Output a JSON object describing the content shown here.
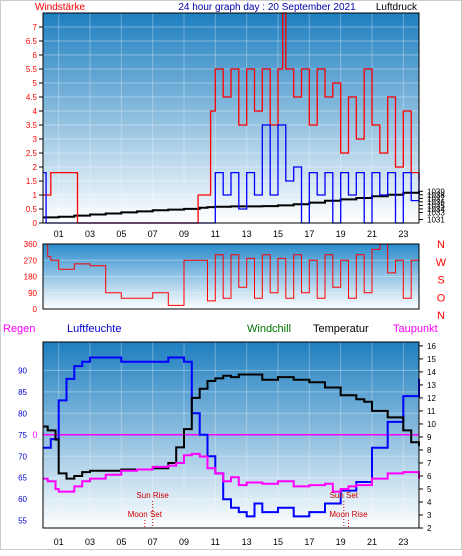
{
  "chart_data": [
    {
      "type": "line",
      "title": "24 hour graph day : 20 September 2021",
      "left_axis_label": "Windstärke",
      "right_axis_label": "Luftdruck",
      "x_ticks": [
        "01",
        "03",
        "05",
        "07",
        "09",
        "11",
        "13",
        "15",
        "17",
        "19",
        "21",
        "23"
      ],
      "x_range": [
        0,
        24
      ],
      "y_left_range": [
        0,
        7.5
      ],
      "y_left_ticks": [
        "0",
        "0.5",
        "1",
        "1.5",
        "2",
        "2.5",
        "3",
        "3.5",
        "4",
        "4.5",
        "5",
        "5.5",
        "6",
        "6.5",
        "7"
      ],
      "y_right_range": [
        1030,
        1089.6
      ],
      "y_right_ticks": [
        "1031",
        "1033",
        "1034",
        "1035",
        "1036",
        "1037",
        "1038",
        "1039"
      ],
      "grid": true,
      "series": [
        {
          "name": "Luftdruck",
          "axis": "right",
          "color": "#000000",
          "x": [
            0,
            1,
            2,
            3,
            4,
            5,
            6,
            7,
            8,
            9,
            10,
            10.5,
            11,
            12,
            13,
            14,
            15,
            16,
            17,
            18,
            19,
            20,
            21,
            22,
            23,
            24
          ],
          "y": [
            1031.6,
            1031.8,
            1032.1,
            1032.4,
            1032.7,
            1033.0,
            1033.3,
            1033.6,
            1033.8,
            1034.0,
            1034.3,
            1034.5,
            1034.6,
            1034.7,
            1034.7,
            1034.8,
            1035.0,
            1035.3,
            1035.8,
            1036.3,
            1036.7,
            1037.1,
            1037.6,
            1038.0,
            1038.6,
            1039.1
          ]
        },
        {
          "name": "Wind gust",
          "axis": "left",
          "color": "#ff0000",
          "x": [
            0,
            0.4,
            0.5,
            2.1,
            2.2,
            3.9,
            4.0,
            9.8,
            9.9,
            10.6,
            10.7,
            11,
            11.5,
            12,
            12.5,
            13,
            13.5,
            14,
            14.5,
            15,
            15.3,
            15.5,
            16,
            16.5,
            17,
            17.5,
            18,
            18.5,
            19,
            19.5,
            20,
            20.5,
            21,
            21.5,
            22,
            22.5,
            23,
            23.5,
            24
          ],
          "y": [
            1.0,
            1.0,
            1.8,
            1.8,
            0.0,
            0.0,
            0.0,
            0.0,
            1.0,
            1.0,
            4.0,
            5.5,
            4.5,
            5.5,
            3.5,
            5.5,
            4.0,
            5.5,
            3.5,
            5.5,
            7.5,
            5.5,
            4.5,
            5.5,
            3.5,
            5.5,
            4.5,
            5.0,
            2.5,
            4.5,
            3.0,
            5.5,
            3.5,
            2.5,
            4.5,
            2.0,
            4.0,
            1.8,
            1.5
          ]
        },
        {
          "name": "Windstärke",
          "axis": "left",
          "color": "#0000ff",
          "x": [
            0,
            0.2,
            10.7,
            11,
            11.5,
            12,
            12.5,
            13,
            13.5,
            14,
            14.5,
            15,
            15.5,
            16,
            16.5,
            17,
            17.5,
            18,
            18.5,
            19,
            19.5,
            20,
            20.5,
            21,
            21.5,
            22,
            22.5,
            23,
            23.5,
            24
          ],
          "y": [
            1.8,
            0.0,
            0.0,
            1.8,
            1.0,
            1.8,
            0.5,
            1.8,
            1.0,
            3.5,
            1.0,
            3.5,
            1.5,
            2.0,
            0.0,
            1.8,
            1.0,
            1.8,
            0.0,
            1.8,
            1.0,
            1.8,
            0.0,
            1.8,
            1.0,
            1.8,
            0.0,
            1.8,
            0.8,
            1.8
          ]
        }
      ]
    },
    {
      "type": "line",
      "right_axis_labels": [
        "N",
        "W",
        "S",
        "O",
        "N"
      ],
      "y_range": [
        0,
        360
      ],
      "y_ticks": [
        "0",
        "90",
        "180",
        "270",
        "360"
      ],
      "x_ticks": [
        "01",
        "03",
        "05",
        "07",
        "09",
        "11",
        "13",
        "15",
        "17",
        "19",
        "21",
        "23"
      ],
      "x_range": [
        0,
        24
      ],
      "grid": true,
      "series": [
        {
          "name": "Windrichtung",
          "color": "#ff0000",
          "x": [
            0,
            0.3,
            0.5,
            1.0,
            2.0,
            3.0,
            4.0,
            5.0,
            6.0,
            7.0,
            8.0,
            9.0,
            10.0,
            10.5,
            11,
            11.5,
            12,
            12.5,
            13,
            13.5,
            14,
            14.5,
            15,
            15.5,
            16,
            16.5,
            17,
            17.5,
            18,
            18.5,
            19,
            19.5,
            20,
            20.5,
            21,
            21.5,
            22,
            22.5,
            23,
            23.5,
            24
          ],
          "y": [
            360,
            290,
            270,
            220,
            250,
            240,
            90,
            60,
            60,
            90,
            20,
            270,
            270,
            45,
            300,
            60,
            300,
            120,
            280,
            60,
            300,
            90,
            280,
            60,
            300,
            90,
            270,
            60,
            300,
            120,
            270,
            60,
            300,
            90,
            330,
            360,
            200,
            270,
            60,
            270,
            270
          ]
        }
      ]
    },
    {
      "type": "line",
      "top_labels": {
        "regen": "Regen",
        "luftfeuchte": "Luftfeuchte",
        "windchill": "Windchill",
        "temperatur": "Temperatur",
        "taupunkt": "Taupunkt"
      },
      "x_ticks": [
        "01",
        "03",
        "05",
        "07",
        "09",
        "11",
        "13",
        "15",
        "17",
        "19",
        "21",
        "23"
      ],
      "x_range": [
        0,
        24
      ],
      "y_left_range": [
        53.3,
        96.6
      ],
      "y_left_ticks": [
        "55",
        "60",
        "65",
        "70",
        "75",
        "80",
        "85",
        "90"
      ],
      "y_right_range": [
        2.0,
        16.3
      ],
      "y_right_ticks": [
        "2",
        "3",
        "4",
        "5",
        "6",
        "7",
        "8",
        "9",
        "10",
        "11",
        "12",
        "13",
        "14",
        "15",
        "16"
      ],
      "zero_marker": "0",
      "annotations": [
        {
          "text": "Sun Rise",
          "x": 7.0
        },
        {
          "text": "Moon Set",
          "x": 6.5
        },
        {
          "text": "Sun Set",
          "x": 19.2
        },
        {
          "text": "Moon Rise",
          "x": 19.5
        }
      ],
      "series": [
        {
          "name": "Luftfeuchte",
          "axis": "left",
          "color": "#0000ff",
          "x": [
            0,
            0.5,
            1.0,
            1.5,
            2.0,
            2.5,
            3,
            4,
            5,
            6,
            7,
            8,
            9,
            9.5,
            10,
            10.5,
            11,
            11.5,
            12,
            12.5,
            13,
            13.5,
            14,
            15,
            16,
            17,
            18,
            19,
            20,
            21,
            22,
            23,
            24
          ],
          "y": [
            72,
            74,
            83,
            88,
            91,
            92,
            93,
            93,
            92,
            92,
            92,
            93,
            92,
            80,
            75,
            70,
            66,
            60,
            58,
            57,
            56,
            59,
            57,
            58,
            56,
            57,
            59,
            62,
            64,
            72,
            78,
            84,
            88
          ]
        },
        {
          "name": "Temperatur",
          "axis": "right",
          "color": "#000000",
          "x": [
            0,
            0.3,
            0.8,
            1.0,
            1.5,
            2.0,
            2.5,
            3,
            4,
            5,
            6,
            7,
            8,
            8.5,
            9,
            9.5,
            10,
            10.5,
            11,
            11.5,
            12,
            12.5,
            13,
            14,
            15,
            16,
            17,
            18,
            19,
            20,
            20.5,
            21,
            22,
            23,
            23.5,
            24
          ],
          "y": [
            9.8,
            9.5,
            8.8,
            6.2,
            5.8,
            6.0,
            6.3,
            6.4,
            6.4,
            6.5,
            6.5,
            6.6,
            7.0,
            8.2,
            9.6,
            12.0,
            12.7,
            13.3,
            13.5,
            13.7,
            13.6,
            13.8,
            13.8,
            13.4,
            13.6,
            13.4,
            13.2,
            12.8,
            12.2,
            11.9,
            11.7,
            11.0,
            10.5,
            9.5,
            8.6,
            8.3
          ]
        },
        {
          "name": "Taupunkt",
          "axis": "right",
          "color": "#ff00ff",
          "x": [
            0,
            0.3,
            0.8,
            1.0,
            1.5,
            2.0,
            2.5,
            3,
            4,
            5,
            6,
            7,
            8,
            8.5,
            9,
            9.5,
            10,
            10.5,
            11,
            11.5,
            12,
            12.5,
            13,
            14,
            15,
            16,
            17,
            18,
            18.5,
            19,
            19.5,
            20,
            21,
            22,
            23,
            24
          ],
          "y": [
            5.8,
            5.6,
            5.0,
            4.8,
            4.8,
            5.2,
            5.6,
            5.8,
            6.1,
            6.4,
            6.5,
            6.7,
            6.8,
            7.0,
            7.6,
            7.7,
            7.5,
            6.6,
            6.2,
            5.6,
            5.9,
            5.3,
            5.5,
            5.4,
            5.6,
            5.2,
            5.3,
            5.4,
            4.8,
            5.0,
            5.2,
            5.3,
            5.8,
            6.2,
            6.3,
            5.8
          ]
        }
      ]
    }
  ]
}
